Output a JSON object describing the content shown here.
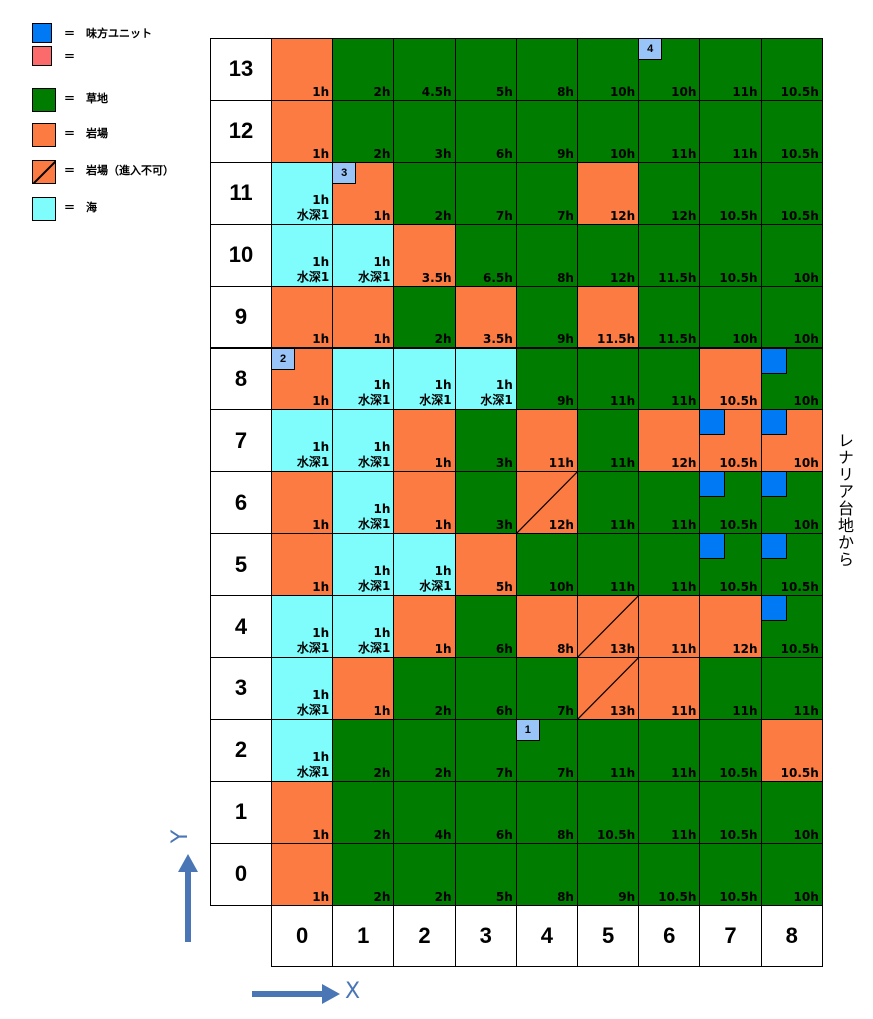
{
  "legend": {
    "items": [
      {
        "key": "ally",
        "label": "＝　味方ユニット",
        "color": "#0079f4"
      },
      {
        "key": "enemy",
        "label": "＝",
        "color": "#fb6b6b"
      },
      {
        "key": "grass",
        "label": "＝　草地",
        "color": "#007c00"
      },
      {
        "key": "rock",
        "label": "＝　岩場",
        "color": "#fb7b43"
      },
      {
        "key": "rock_blocked",
        "label": "＝　岩場（進入不可）",
        "color": "#fb7b43"
      },
      {
        "key": "sea",
        "label": "＝　海",
        "color": "#7ffcfc"
      }
    ]
  },
  "side_text": "レナリア台地から",
  "axis": {
    "x_label": "X",
    "y_label": "Y"
  },
  "depth_label": "水深1",
  "columns": [
    "0",
    "1",
    "2",
    "3",
    "4",
    "5",
    "6",
    "7",
    "8"
  ],
  "rows": [
    {
      "label": "13",
      "cells": [
        [
          "r",
          "1h"
        ],
        [
          "g",
          "2h"
        ],
        [
          "g",
          "4.5h"
        ],
        [
          "g",
          "5h"
        ],
        [
          "g",
          "8h"
        ],
        [
          "g",
          "10h"
        ],
        [
          "g",
          "10h"
        ],
        [
          "g",
          "11h"
        ],
        [
          "g",
          "10.5h"
        ]
      ]
    },
    {
      "label": "12",
      "cells": [
        [
          "r",
          "1h"
        ],
        [
          "g",
          "2h"
        ],
        [
          "g",
          "3h"
        ],
        [
          "g",
          "6h"
        ],
        [
          "g",
          "9h"
        ],
        [
          "g",
          "10h"
        ],
        [
          "g",
          "11h"
        ],
        [
          "g",
          "11h"
        ],
        [
          "g",
          "10.5h"
        ]
      ]
    },
    {
      "label": "11",
      "cells": [
        [
          "s",
          "1h"
        ],
        [
          "r",
          "1h"
        ],
        [
          "g",
          "2h"
        ],
        [
          "g",
          "7h"
        ],
        [
          "g",
          "7h"
        ],
        [
          "r",
          "12h"
        ],
        [
          "g",
          "12h"
        ],
        [
          "g",
          "10.5h"
        ],
        [
          "g",
          "10.5h"
        ]
      ]
    },
    {
      "label": "10",
      "cells": [
        [
          "s",
          "1h"
        ],
        [
          "s",
          "1h"
        ],
        [
          "r",
          "3.5h"
        ],
        [
          "g",
          "6.5h"
        ],
        [
          "g",
          "8h"
        ],
        [
          "g",
          "12h"
        ],
        [
          "g",
          "11.5h"
        ],
        [
          "g",
          "10.5h"
        ],
        [
          "g",
          "10h"
        ]
      ]
    },
    {
      "label": "9",
      "cells": [
        [
          "r",
          "1h"
        ],
        [
          "r",
          "1h"
        ],
        [
          "g",
          "2h"
        ],
        [
          "r",
          "3.5h"
        ],
        [
          "g",
          "9h"
        ],
        [
          "r",
          "11.5h"
        ],
        [
          "g",
          "11.5h"
        ],
        [
          "g",
          "10h"
        ],
        [
          "g",
          "10h"
        ]
      ]
    },
    {
      "label": "8",
      "cells": [
        [
          "r",
          "1h"
        ],
        [
          "s",
          "1h"
        ],
        [
          "s",
          "1h"
        ],
        [
          "s",
          "1h"
        ],
        [
          "g",
          "9h"
        ],
        [
          "g",
          "11h"
        ],
        [
          "g",
          "11h"
        ],
        [
          "r",
          "10.5h"
        ],
        [
          "g",
          "10h"
        ]
      ]
    },
    {
      "label": "7",
      "cells": [
        [
          "s",
          "1h"
        ],
        [
          "s",
          "1h"
        ],
        [
          "r",
          "1h"
        ],
        [
          "g",
          "3h"
        ],
        [
          "r",
          "11h"
        ],
        [
          "g",
          "11h"
        ],
        [
          "r",
          "12h"
        ],
        [
          "r",
          "10.5h"
        ],
        [
          "r",
          "10h"
        ]
      ]
    },
    {
      "label": "6",
      "cells": [
        [
          "r",
          "1h"
        ],
        [
          "s",
          "1h"
        ],
        [
          "r",
          "1h"
        ],
        [
          "g",
          "3h"
        ],
        [
          "x",
          "12h"
        ],
        [
          "g",
          "11h"
        ],
        [
          "g",
          "11h"
        ],
        [
          "g",
          "10.5h"
        ],
        [
          "g",
          "10h"
        ]
      ]
    },
    {
      "label": "5",
      "cells": [
        [
          "r",
          "1h"
        ],
        [
          "s",
          "1h"
        ],
        [
          "s",
          "1h"
        ],
        [
          "r",
          "5h"
        ],
        [
          "g",
          "10h"
        ],
        [
          "g",
          "11h"
        ],
        [
          "g",
          "11h"
        ],
        [
          "g",
          "10.5h"
        ],
        [
          "g",
          "10.5h"
        ]
      ]
    },
    {
      "label": "4",
      "cells": [
        [
          "s",
          "1h"
        ],
        [
          "s",
          "1h"
        ],
        [
          "r",
          "1h"
        ],
        [
          "g",
          "6h"
        ],
        [
          "r",
          "8h"
        ],
        [
          "x",
          "13h"
        ],
        [
          "r",
          "11h"
        ],
        [
          "r",
          "12h"
        ],
        [
          "g",
          "10.5h"
        ]
      ]
    },
    {
      "label": "3",
      "cells": [
        [
          "s",
          "1h"
        ],
        [
          "r",
          "1h"
        ],
        [
          "g",
          "2h"
        ],
        [
          "g",
          "6h"
        ],
        [
          "g",
          "7h"
        ],
        [
          "x",
          "13h"
        ],
        [
          "r",
          "11h"
        ],
        [
          "g",
          "11h"
        ],
        [
          "g",
          "11h"
        ]
      ]
    },
    {
      "label": "2",
      "cells": [
        [
          "s",
          "1h"
        ],
        [
          "g",
          "2h"
        ],
        [
          "g",
          "2h"
        ],
        [
          "g",
          "7h"
        ],
        [
          "g",
          "7h"
        ],
        [
          "g",
          "11h"
        ],
        [
          "g",
          "11h"
        ],
        [
          "g",
          "10.5h"
        ],
        [
          "r",
          "10.5h"
        ]
      ]
    },
    {
      "label": "1",
      "cells": [
        [
          "r",
          "1h"
        ],
        [
          "g",
          "2h"
        ],
        [
          "g",
          "4h"
        ],
        [
          "g",
          "6h"
        ],
        [
          "g",
          "8h"
        ],
        [
          "g",
          "10.5h"
        ],
        [
          "g",
          "11h"
        ],
        [
          "g",
          "10.5h"
        ],
        [
          "g",
          "10h"
        ]
      ]
    },
    {
      "label": "0",
      "cells": [
        [
          "r",
          "1h"
        ],
        [
          "g",
          "2h"
        ],
        [
          "g",
          "2h"
        ],
        [
          "g",
          "5h"
        ],
        [
          "g",
          "8h"
        ],
        [
          "g",
          "9h"
        ],
        [
          "g",
          "10.5h"
        ],
        [
          "g",
          "10.5h"
        ],
        [
          "g",
          "10h"
        ]
      ]
    }
  ],
  "numbered_units": [
    {
      "label": "4",
      "col": 6,
      "row": "13"
    },
    {
      "label": "3",
      "col": 1,
      "row": "11"
    },
    {
      "label": "2",
      "col": 0,
      "row": "8"
    },
    {
      "label": "1",
      "col": 4,
      "row": "2"
    }
  ],
  "ally_units": [
    {
      "col": 8,
      "row": "8"
    },
    {
      "col": 7,
      "row": "7"
    },
    {
      "col": 8,
      "row": "7"
    },
    {
      "col": 7,
      "row": "6"
    },
    {
      "col": 8,
      "row": "6"
    },
    {
      "col": 7,
      "row": "5"
    },
    {
      "col": 8,
      "row": "5"
    },
    {
      "col": 8,
      "row": "4"
    }
  ]
}
